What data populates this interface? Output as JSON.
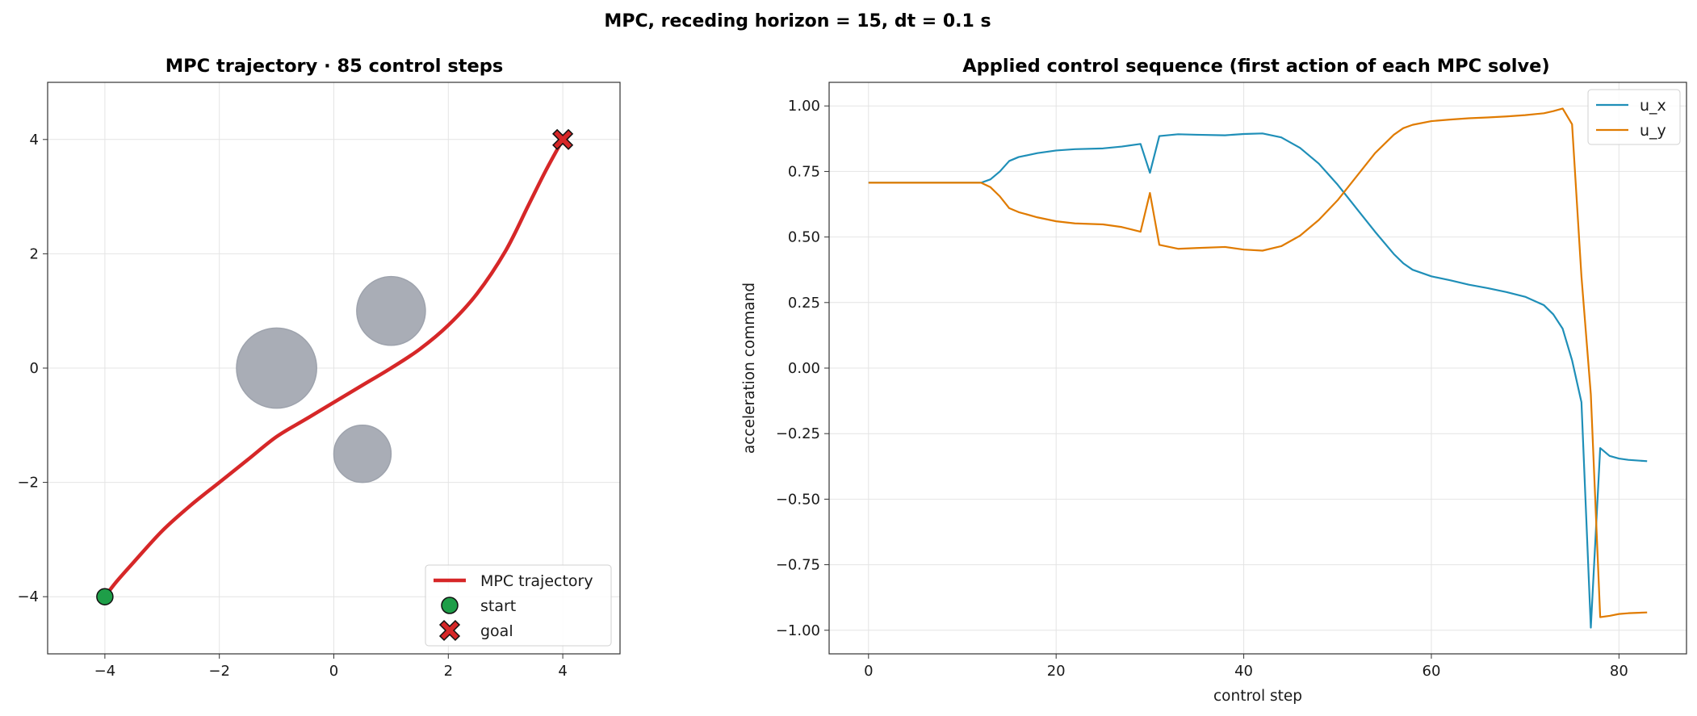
{
  "suptitle": "MPC, receding horizon = 15, dt = 0.1 s",
  "chart_data": [
    {
      "type": "line",
      "title": "MPC trajectory  ·  85 control steps",
      "xlabel": "",
      "ylabel": "",
      "xlim": [
        -5,
        5
      ],
      "ylim": [
        -5,
        5
      ],
      "xticks": [
        -4,
        -2,
        0,
        2,
        4
      ],
      "yticks": [
        -4,
        -2,
        0,
        2,
        4
      ],
      "xtick_labels": [
        "−4",
        "−2",
        "0",
        "2",
        "4"
      ],
      "ytick_labels": [
        "−4",
        "−2",
        "0",
        "2",
        "4"
      ],
      "grid": true,
      "aspect": "equal",
      "legend_location": "lower right",
      "legend": [
        "MPC trajectory",
        "start",
        "goal"
      ],
      "obstacles": [
        {
          "cx": -1.0,
          "cy": 0.0,
          "r": 0.7
        },
        {
          "cx": 1.0,
          "cy": 1.0,
          "r": 0.6
        },
        {
          "cx": 0.5,
          "cy": -1.5,
          "r": 0.5
        }
      ],
      "trajectory": {
        "name": "MPC trajectory",
        "color": "#d62728",
        "x": [
          -4.0,
          -3.8,
          -3.5,
          -3.0,
          -2.5,
          -2.0,
          -1.5,
          -1.0,
          -0.5,
          0.0,
          0.5,
          1.0,
          1.5,
          2.0,
          2.5,
          3.0,
          3.4,
          3.7,
          4.0
        ],
        "y": [
          -4.0,
          -3.74,
          -3.4,
          -2.85,
          -2.4,
          -2.0,
          -1.6,
          -1.2,
          -0.9,
          -0.6,
          -0.3,
          0.0,
          0.33,
          0.75,
          1.3,
          2.05,
          2.85,
          3.45,
          4.0
        ]
      },
      "start": {
        "name": "start",
        "x": -4,
        "y": -4,
        "color": "#1e9e48"
      },
      "goal": {
        "name": "goal",
        "x": 4,
        "y": 4,
        "color": "#d62728"
      },
      "obstacle_color": "#a9adb6"
    },
    {
      "type": "line",
      "title": "Applied control sequence (first action of each MPC solve)",
      "xlabel": "control step",
      "ylabel": "acceleration command",
      "xlim": [
        -4.2,
        87.2
      ],
      "ylim": [
        -1.09,
        1.09
      ],
      "xticks": [
        0,
        20,
        40,
        60,
        80
      ],
      "yticks": [
        1.0,
        0.75,
        0.5,
        0.25,
        0.0,
        -0.25,
        -0.5,
        -0.75,
        -1.0
      ],
      "xtick_labels": [
        "0",
        "20",
        "40",
        "60",
        "80"
      ],
      "ytick_labels": [
        "1.00",
        "0.75",
        "0.50",
        "0.25",
        "0.00",
        "−0.25",
        "−0.50",
        "−0.75",
        "−1.00"
      ],
      "grid": true,
      "legend_location": "upper right",
      "series": [
        {
          "name": "u_x",
          "color": "#1f8fb8",
          "x": [
            0,
            12,
            13,
            14,
            15,
            16,
            18,
            20,
            22,
            25,
            27,
            29,
            30,
            31,
            33,
            35,
            38,
            40,
            42,
            44,
            46,
            48,
            50,
            52,
            54,
            56,
            57,
            58,
            60,
            62,
            64,
            66,
            68,
            70,
            72,
            73,
            74,
            75,
            76,
            77,
            78,
            79,
            80,
            81,
            83
          ],
          "y": [
            0.707,
            0.707,
            0.72,
            0.75,
            0.79,
            0.805,
            0.82,
            0.83,
            0.835,
            0.838,
            0.845,
            0.855,
            0.745,
            0.885,
            0.892,
            0.89,
            0.888,
            0.893,
            0.895,
            0.88,
            0.84,
            0.78,
            0.7,
            0.61,
            0.52,
            0.435,
            0.4,
            0.375,
            0.35,
            0.335,
            0.318,
            0.305,
            0.29,
            0.272,
            0.24,
            0.205,
            0.15,
            0.03,
            -0.13,
            -0.99,
            -0.305,
            -0.335,
            -0.345,
            -0.35,
            -0.355
          ]
        },
        {
          "name": "u_y",
          "color": "#e07b00",
          "x": [
            0,
            12,
            13,
            14,
            15,
            16,
            18,
            20,
            22,
            25,
            27,
            29,
            30,
            31,
            33,
            35,
            38,
            40,
            42,
            44,
            46,
            48,
            50,
            52,
            54,
            56,
            57,
            58,
            60,
            62,
            64,
            66,
            68,
            70,
            72,
            73,
            74,
            75,
            76,
            77,
            78,
            79,
            80,
            81,
            83
          ],
          "y": [
            0.707,
            0.707,
            0.69,
            0.655,
            0.61,
            0.595,
            0.575,
            0.56,
            0.552,
            0.548,
            0.538,
            0.52,
            0.668,
            0.47,
            0.455,
            0.458,
            0.462,
            0.452,
            0.448,
            0.465,
            0.505,
            0.565,
            0.64,
            0.73,
            0.82,
            0.89,
            0.915,
            0.928,
            0.942,
            0.948,
            0.953,
            0.956,
            0.96,
            0.965,
            0.972,
            0.98,
            0.99,
            0.93,
            0.35,
            -0.1,
            -0.95,
            -0.945,
            -0.938,
            -0.935,
            -0.932
          ]
        }
      ]
    }
  ]
}
